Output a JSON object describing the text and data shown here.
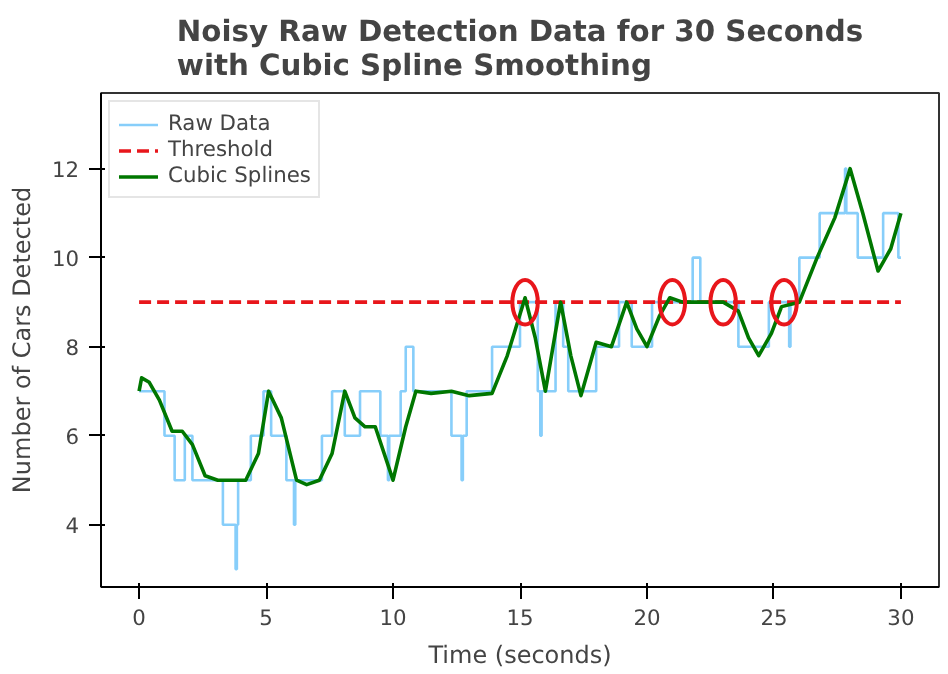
{
  "chart_data": {
    "type": "line",
    "title": "Noisy Raw Detection Data for 30 Seconds\nwith Cubic Spline Smoothing",
    "xlabel": "Time (seconds)",
    "ylabel": "Number of Cars Detected",
    "xlim": [
      -1.5,
      31.5
    ],
    "ylim": [
      2.6,
      13.7
    ],
    "xticks": [
      0,
      5,
      10,
      15,
      20,
      25,
      30
    ],
    "yticks": [
      4,
      6,
      8,
      10,
      12
    ],
    "grid": false,
    "legend": "top left",
    "series": [
      {
        "name": "Raw Data",
        "type": "step",
        "color": "#87cefa",
        "x": [
          0,
          1.0,
          1.4,
          1.8,
          2.1,
          3.3,
          3.8,
          3.85,
          3.9,
          4.4,
          4.9,
          5.2,
          5.8,
          6.1,
          6.15,
          7.2,
          7.6,
          8.1,
          8.7,
          9.5,
          9.8,
          9.85,
          10.3,
          10.5,
          10.8,
          12.3,
          12.7,
          12.75,
          12.9,
          13.9,
          15.0,
          15.7,
          15.8,
          15.85,
          16.4,
          16.7,
          16.9,
          18.0,
          18.9,
          19.4,
          20.2,
          21.8,
          22.1,
          23.6,
          24.8,
          25.6,
          25.65,
          26.0,
          26.8,
          27.8,
          27.85,
          28.3,
          29.3,
          29.9,
          30
        ],
        "values": [
          7,
          6,
          5,
          6,
          5,
          4,
          3,
          4,
          5,
          6,
          7,
          6,
          5,
          4,
          5,
          6,
          7,
          6,
          7,
          6,
          5,
          6,
          7,
          8,
          7,
          6,
          5,
          6,
          7,
          8,
          9,
          7,
          6,
          7,
          9,
          8,
          7,
          8,
          9,
          8,
          9,
          10,
          9,
          8,
          9,
          8,
          9,
          10,
          11,
          12,
          11,
          10,
          11,
          10,
          10
        ]
      },
      {
        "name": "Threshold",
        "line_style": "dashed",
        "color": "#e8161b",
        "x": [
          0,
          30
        ],
        "values": [
          9,
          9
        ]
      },
      {
        "name": "Cubic Splines",
        "color": "#007700",
        "x": [
          0,
          0.1,
          0.4,
          0.8,
          1.3,
          1.7,
          2.1,
          2.6,
          3.1,
          3.7,
          4.2,
          4.7,
          5.1,
          5.6,
          6.2,
          6.6,
          7.1,
          7.6,
          8.1,
          8.5,
          8.9,
          9.3,
          10.0,
          10.5,
          10.9,
          11.5,
          12.3,
          13.0,
          13.9,
          14.5,
          15.2,
          15.6,
          16.0,
          16.6,
          17.0,
          17.4,
          18.0,
          18.6,
          19.2,
          19.6,
          20.0,
          20.5,
          20.9,
          21.4,
          21.9,
          22.5,
          23.0,
          23.6,
          24.0,
          24.4,
          24.9,
          25.3,
          26.0,
          26.7,
          27.4,
          28.0,
          28.5,
          29.1,
          29.6,
          30
        ],
        "values": [
          7.0,
          7.3,
          7.2,
          6.8,
          6.1,
          6.1,
          5.8,
          5.1,
          5.0,
          5.0,
          5.0,
          5.6,
          7.0,
          6.4,
          5.0,
          4.9,
          5.0,
          5.6,
          7.0,
          6.4,
          6.2,
          6.2,
          5.0,
          6.2,
          7.0,
          6.95,
          7.0,
          6.9,
          6.95,
          7.8,
          9.1,
          8.2,
          7.0,
          9.0,
          7.8,
          6.9,
          8.1,
          8.0,
          9.0,
          8.4,
          8.0,
          8.7,
          9.1,
          9.0,
          9.0,
          9.0,
          9.0,
          8.8,
          8.2,
          7.8,
          8.3,
          8.9,
          9.0,
          10.0,
          10.9,
          12.0,
          11.0,
          9.7,
          10.2,
          11.0
        ]
      },
      {
        "type": "scatter",
        "marker": "circle",
        "color": "#e8161b",
        "x": [
          15.2,
          21.0,
          23.0,
          25.4
        ],
        "values": [
          9,
          9,
          9,
          9
        ]
      }
    ]
  }
}
